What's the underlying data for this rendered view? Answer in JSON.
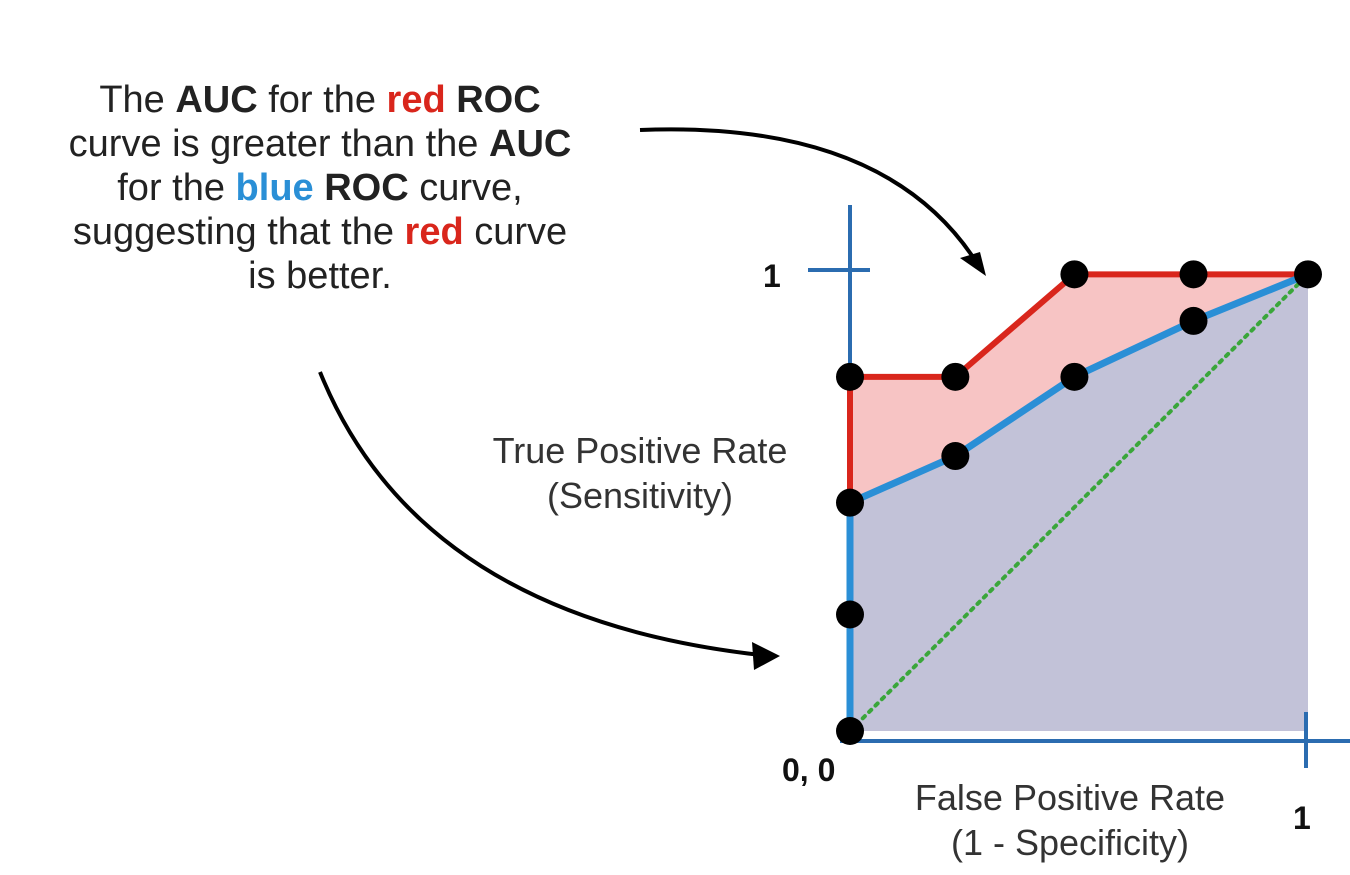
{
  "caption": {
    "line1": [
      "The ",
      "AUC",
      " for the ",
      "red",
      " ",
      "ROC"
    ],
    "line2": [
      "curve is greater than the ",
      "AUC"
    ],
    "line3": [
      "for the ",
      "blue",
      " ",
      "ROC",
      " curve,"
    ],
    "line4": [
      "suggesting that the ",
      "red",
      " curve"
    ],
    "line5": [
      "is better."
    ]
  },
  "colors": {
    "red": "#d9261c",
    "blue": "#2a8fd6",
    "axis": "#2b6cb0",
    "red_fill": "#f7c4c4",
    "blue_fill": "#c2c2d8",
    "diagonal": "#3aa63a"
  },
  "chart_data": {
    "type": "line",
    "xlabel": "False Positive Rate (1 - Specificity)",
    "ylabel": "True Positive Rate (Sensitivity)",
    "xlim": [
      0,
      1
    ],
    "ylim": [
      0,
      1
    ],
    "x_ticks": {
      "origin": "0, 0",
      "max": "1"
    },
    "y_ticks": {
      "max": "1"
    },
    "x_label_lines": [
      "False Positive Rate",
      "(1 - Specificity)"
    ],
    "y_label_lines": [
      "True Positive Rate",
      "(Sensitivity)"
    ],
    "series": [
      {
        "color": "red",
        "x": [
          0,
          0,
          0.23,
          0.49,
          1
        ],
        "y": [
          0.49,
          0.76,
          0.76,
          0.98,
          0.98
        ],
        "fill": true
      },
      {
        "color": "blue",
        "x": [
          0,
          0,
          0.23,
          0.49,
          0.75,
          1
        ],
        "y": [
          0,
          0.49,
          0.59,
          0.76,
          0.88,
          0.98
        ],
        "fill": true
      },
      {
        "color": "diagonal",
        "style": "dotted",
        "x": [
          0,
          1
        ],
        "y": [
          0,
          0.98
        ]
      }
    ],
    "points": [
      {
        "x": 0,
        "y": 0
      },
      {
        "x": 0,
        "y": 0.25
      },
      {
        "x": 0,
        "y": 0.49
      },
      {
        "x": 0,
        "y": 0.76
      },
      {
        "x": 0.23,
        "y": 0.59
      },
      {
        "x": 0.23,
        "y": 0.76
      },
      {
        "x": 0.49,
        "y": 0.76
      },
      {
        "x": 0.49,
        "y": 0.98
      },
      {
        "x": 0.75,
        "y": 0.88
      },
      {
        "x": 0.75,
        "y": 0.98
      },
      {
        "x": 1,
        "y": 0.98
      }
    ]
  }
}
